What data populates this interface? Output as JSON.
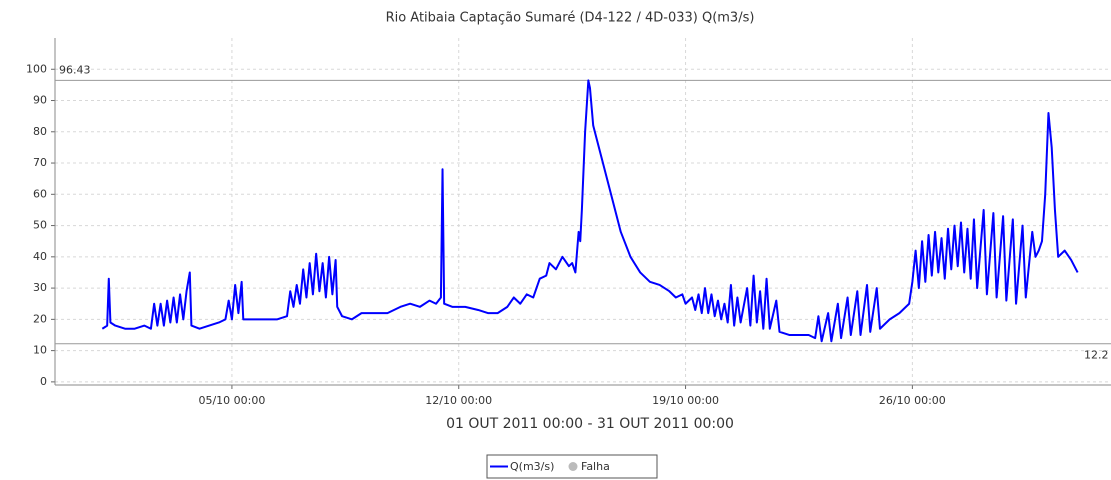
{
  "chart_data": {
    "type": "line",
    "title": "Rio Atibaia Captação Sumaré  (D4-122 / 4D-033) Q(m3/s)",
    "x_label": "01 OUT 2011 00:00 - 31 OUT 2011 00:00",
    "grid": true,
    "xlim": [
      -0.46,
      32.13
    ],
    "xticks": [
      {
        "value": 5,
        "label": "05/10 00:00"
      },
      {
        "value": 12,
        "label": "12/10 00:00"
      },
      {
        "value": 19,
        "label": "19/10 00:00"
      },
      {
        "value": 26,
        "label": "26/10 00:00"
      }
    ],
    "ylim": [
      -1,
      110
    ],
    "yticks": [
      0,
      10,
      20,
      30,
      40,
      50,
      60,
      70,
      80,
      90,
      100
    ],
    "max_line": 96.43,
    "min_line": 12.2,
    "reference_color": "#999999",
    "failure_legend": {
      "name": "Falha",
      "color": "#bbbbbb"
    },
    "x": [
      1.0,
      1.15,
      1.2,
      1.25,
      1.4,
      1.7,
      2.0,
      2.3,
      2.5,
      2.6,
      2.7,
      2.8,
      2.9,
      3.0,
      3.1,
      3.2,
      3.3,
      3.4,
      3.5,
      3.6,
      3.7,
      3.75,
      4.0,
      4.3,
      4.6,
      4.8,
      4.9,
      5.0,
      5.1,
      5.2,
      5.3,
      5.35,
      5.6,
      6.0,
      6.4,
      6.7,
      6.8,
      6.9,
      7.0,
      7.1,
      7.2,
      7.3,
      7.4,
      7.5,
      7.6,
      7.7,
      7.8,
      7.9,
      8.0,
      8.1,
      8.2,
      8.25,
      8.4,
      8.7,
      9.0,
      9.4,
      9.8,
      10.2,
      10.5,
      10.8,
      11.1,
      11.3,
      11.45,
      11.5,
      11.55,
      11.8,
      12.2,
      12.6,
      12.9,
      13.2,
      13.5,
      13.7,
      13.9,
      14.1,
      14.3,
      14.5,
      14.7,
      14.8,
      15.0,
      15.2,
      15.4,
      15.5,
      15.6,
      15.7,
      15.75,
      15.8,
      15.9,
      16.0,
      16.05,
      16.15,
      16.4,
      16.7,
      17.0,
      17.3,
      17.6,
      17.9,
      18.2,
      18.5,
      18.7,
      18.9,
      19.0,
      19.2,
      19.3,
      19.4,
      19.5,
      19.6,
      19.7,
      19.8,
      19.9,
      20.0,
      20.1,
      20.2,
      20.3,
      20.4,
      20.5,
      20.6,
      20.7,
      20.9,
      21.0,
      21.1,
      21.2,
      21.3,
      21.4,
      21.5,
      21.6,
      21.8,
      21.9,
      22.2,
      22.5,
      22.8,
      23.0,
      23.1,
      23.2,
      23.4,
      23.5,
      23.7,
      23.8,
      24.0,
      24.1,
      24.3,
      24.4,
      24.6,
      24.7,
      24.9,
      25.0,
      25.3,
      25.6,
      25.9,
      26.0,
      26.1,
      26.2,
      26.3,
      26.4,
      26.5,
      26.6,
      26.7,
      26.8,
      26.9,
      27.0,
      27.1,
      27.2,
      27.3,
      27.4,
      27.5,
      27.6,
      27.7,
      27.8,
      27.9,
      28.0,
      28.2,
      28.3,
      28.5,
      28.6,
      28.8,
      28.9,
      29.1,
      29.2,
      29.4,
      29.5,
      29.7,
      29.8,
      29.9,
      30.0,
      30.1,
      30.2,
      30.3,
      30.4,
      30.5,
      30.7,
      30.9,
      31.1
    ],
    "series": [
      {
        "name": "Q(m3/s)",
        "color": "#0000ff",
        "values": [
          17,
          18,
          33,
          19,
          18,
          17,
          17,
          18,
          17,
          25,
          18,
          25,
          18,
          26,
          19,
          27,
          19,
          28,
          20,
          29,
          35,
          18,
          17,
          18,
          19,
          20,
          26,
          20,
          31,
          22,
          32,
          20,
          20,
          20,
          20,
          21,
          29,
          24,
          31,
          25,
          36,
          27,
          38,
          28,
          41,
          29,
          38,
          27,
          40,
          28,
          39,
          24,
          21,
          20,
          22,
          22,
          22,
          24,
          25,
          24,
          26,
          25,
          27,
          68,
          25,
          24,
          24,
          23,
          22,
          22,
          24,
          27,
          25,
          28,
          27,
          33,
          34,
          38,
          36,
          40,
          37,
          38,
          35,
          48,
          45,
          55,
          80,
          96.43,
          94,
          82,
          72,
          60,
          48,
          40,
          35,
          32,
          31,
          29,
          27,
          28,
          25,
          27,
          23,
          28,
          22,
          30,
          22,
          28,
          21,
          26,
          20,
          25,
          19,
          31,
          18,
          27,
          19,
          30,
          18,
          34,
          19,
          29,
          17,
          33,
          17,
          26,
          16,
          15,
          15,
          15,
          14,
          21,
          13,
          22,
          13,
          25,
          14,
          27,
          15,
          29,
          15,
          31,
          16,
          30,
          17,
          20,
          22,
          25,
          32,
          42,
          30,
          45,
          32,
          47,
          34,
          48,
          35,
          46,
          33,
          49,
          36,
          50,
          37,
          51,
          35,
          49,
          33,
          52,
          30,
          55,
          28,
          54,
          27,
          53,
          26,
          52,
          25,
          50,
          27,
          48,
          40,
          42,
          45,
          60,
          86,
          75,
          55,
          40,
          42,
          39,
          35
        ]
      }
    ]
  }
}
